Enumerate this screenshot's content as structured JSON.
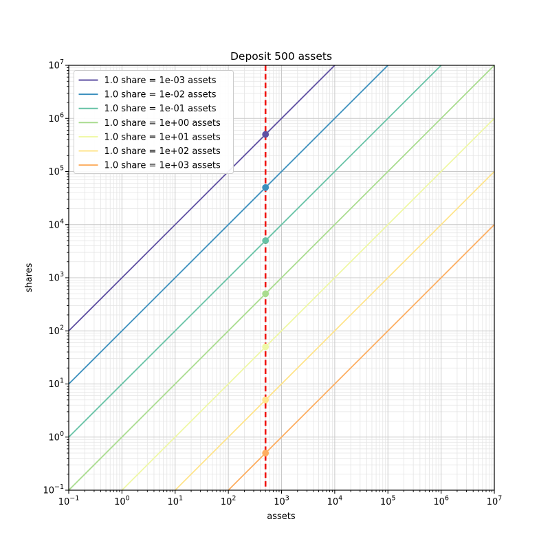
{
  "chart_data": {
    "type": "line",
    "title": "Deposit 500 assets",
    "xlabel": "assets",
    "ylabel": "shares",
    "x_scale": "log",
    "y_scale": "log",
    "xlim": [
      0.1,
      10000000
    ],
    "ylim": [
      0.1,
      10000000
    ],
    "x_tick_exponents": [
      -1,
      0,
      1,
      2,
      3,
      4,
      5,
      6,
      7
    ],
    "y_tick_exponents": [
      -1,
      0,
      1,
      2,
      3,
      4,
      5,
      6,
      7
    ],
    "grid": "major-and-minor",
    "legend_position": "upper-left",
    "deposit": {
      "assets": 500
    },
    "vline": {
      "x": 500,
      "color": "#f01511",
      "style": "dashed"
    },
    "series": [
      {
        "label": "1.0 share = 1e-03 assets",
        "assets_per_share": 0.001,
        "color": "#5e4fa2",
        "marker": {
          "x": 500,
          "y": 500000
        }
      },
      {
        "label": "1.0 share = 1e-02 assets",
        "assets_per_share": 0.01,
        "color": "#3a8fbd",
        "marker": {
          "x": 500,
          "y": 50000
        }
      },
      {
        "label": "1.0 share = 1e-01 assets",
        "assets_per_share": 0.1,
        "color": "#66c2a5",
        "marker": {
          "x": 500,
          "y": 5000
        }
      },
      {
        "label": "1.0 share = 1e+00 assets",
        "assets_per_share": 1.0,
        "color": "#a9dc8e",
        "marker": {
          "x": 500,
          "y": 500
        }
      },
      {
        "label": "1.0 share = 1e+01 assets",
        "assets_per_share": 10.0,
        "color": "#eff8a5",
        "marker": {
          "x": 500,
          "y": 50
        }
      },
      {
        "label": "1.0 share = 1e+02 assets",
        "assets_per_share": 100.0,
        "color": "#ffe48c",
        "marker": {
          "x": 500,
          "y": 5
        }
      },
      {
        "label": "1.0 share = 1e+03 assets",
        "assets_per_share": 1000.0,
        "color": "#fdae61",
        "marker": {
          "x": 500,
          "y": 0.5
        }
      }
    ]
  },
  "style": {
    "background": "#ffffff",
    "grid_major_color": "#c9c9c9",
    "grid_minor_color": "#e4e4e4",
    "axis_color": "#000000",
    "legend_border_color": "#cccccc",
    "legend_background": "#ffffff"
  }
}
